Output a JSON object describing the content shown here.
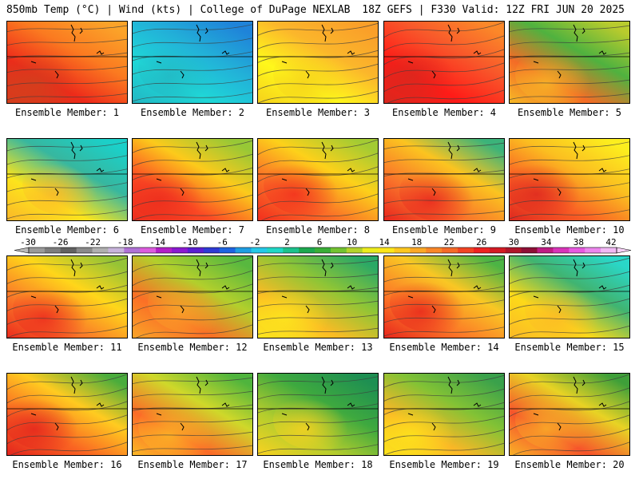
{
  "header": {
    "left": "850mb Temp (°C) | Wind (kts) | College of DuPage NEXLAB",
    "right": "18Z GEFS | F330 Valid: 12Z FRI JUN 20 2025"
  },
  "panels": [
    {
      "label": "Ensemble Member: 1",
      "palette": [
        "#d2401d",
        "#ed2a1a",
        "#fb7a20",
        "#fba329"
      ]
    },
    {
      "label": "Ensemble Member: 2",
      "palette": [
        "#22b7c3",
        "#1fd7d7",
        "#22b0d8",
        "#1f83d9"
      ]
    },
    {
      "label": "Ensemble Member: 3",
      "palette": [
        "#f5d11b",
        "#fff81b",
        "#fbb62b",
        "#fa9f29"
      ]
    },
    {
      "label": "Ensemble Member: 4",
      "palette": [
        "#d8281e",
        "#ff1b17",
        "#f8562a",
        "#fb8829"
      ]
    },
    {
      "label": "Ensemble Member: 5",
      "palette": [
        "#f6b826",
        "#f46c26",
        "#4fb23f",
        "#b9cb2d"
      ]
    },
    {
      "label": "Ensemble Member: 6",
      "palette": [
        "#fbb728",
        "#fce41c",
        "#37b79f",
        "#1bd0c9"
      ]
    },
    {
      "label": "Ensemble Member: 7",
      "palette": [
        "#ec2d1d",
        "#fb4a24",
        "#fcca1b",
        "#97c836"
      ]
    },
    {
      "label": "Ensemble Member: 8",
      "palette": [
        "#f22e1d",
        "#fa6f27",
        "#fdd11a",
        "#a3cb33"
      ]
    },
    {
      "label": "Ensemble Member: 9",
      "palette": [
        "#e8261e",
        "#f9722a",
        "#fbc420",
        "#3bb37a"
      ]
    },
    {
      "label": "Ensemble Member: 10",
      "palette": [
        "#de281f",
        "#fa6024",
        "#fbbf20",
        "#fcee1e"
      ]
    },
    {
      "label": "Ensemble Member: 11",
      "palette": [
        "#ec2b1d",
        "#fa7b28",
        "#ffd61a",
        "#95c336"
      ]
    },
    {
      "label": "Ensemble Member: 12",
      "palette": [
        "#f9a428",
        "#fb6f26",
        "#b2cf2c",
        "#58b83f"
      ]
    },
    {
      "label": "Ensemble Member: 13",
      "palette": [
        "#fde71c",
        "#fbbb24",
        "#8ec536",
        "#2ba866"
      ]
    },
    {
      "label": "Ensemble Member: 14",
      "palette": [
        "#e7261c",
        "#fc7827",
        "#f9c724",
        "#4cb445"
      ]
    },
    {
      "label": "Ensemble Member: 15",
      "palette": [
        "#fbb926",
        "#fdd919",
        "#40b471",
        "#2ad7c8"
      ]
    },
    {
      "label": "Ensemble Member: 16",
      "palette": [
        "#e3241d",
        "#fa6522",
        "#ffcb20",
        "#4aac3c"
      ]
    },
    {
      "label": "Ensemble Member: 17",
      "palette": [
        "#fbb726",
        "#fc6b28",
        "#cfd82a",
        "#4fb43d"
      ]
    },
    {
      "label": "Ensemble Member: 18",
      "palette": [
        "#f9d220",
        "#b4cd2d",
        "#3ea93f",
        "#1e8f52"
      ]
    },
    {
      "label": "Ensemble Member: 19",
      "palette": [
        "#fde41b",
        "#fbb726",
        "#82c235",
        "#3aa14b"
      ]
    },
    {
      "label": "Ensemble Member: 20",
      "palette": [
        "#f9b027",
        "#f6542b",
        "#e8d324",
        "#3e9f39"
      ]
    }
  ],
  "colorbar": {
    "tick_labels": [
      "-30",
      "-26",
      "-22",
      "-18",
      "-14",
      "-10",
      "-6",
      "-2",
      "2",
      "6",
      "10",
      "14",
      "18",
      "22",
      "26",
      "30",
      "34",
      "38",
      "42"
    ],
    "colors": [
      "#9a9a9a",
      "#7d7d7d",
      "#626262",
      "#8a8a8a",
      "#b0b0b0",
      "#c8b4dc",
      "#b072d6",
      "#dc5cde",
      "#b31fc8",
      "#8b1ad0",
      "#5a1fd3",
      "#2e3ad5",
      "#1d64e2",
      "#1f9ee3",
      "#25c9e8",
      "#20d8c6",
      "#1bc28c",
      "#1da84f",
      "#39ae37",
      "#73c331",
      "#b4d32c",
      "#ecec1d",
      "#fde61b",
      "#fdc71f",
      "#fba827",
      "#f98729",
      "#f66a28",
      "#f24424",
      "#ee2322",
      "#d41b24",
      "#b0152a",
      "#8e0f36",
      "#c01c84",
      "#d934b9",
      "#e75ae0",
      "#ec86ee",
      "#f1b8f4"
    ]
  }
}
